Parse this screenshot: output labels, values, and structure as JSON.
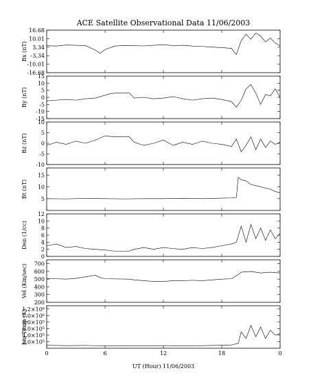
{
  "chart_data": {
    "type": "line",
    "title": "ACE Satellite Observational Data   11/06/2003",
    "xlabel": "UT (Hour)   11/06/2003",
    "x_ticks": [
      "0",
      "6",
      "12",
      "18",
      "0"
    ],
    "x_range_hours": [
      0,
      24
    ],
    "panels": [
      {
        "id": "bx",
        "ylabel": "Bx (nT)",
        "ylim": [
          -16.68,
          16.68
        ],
        "yticks": [
          -16.68,
          -10.01,
          -3.34,
          3.34,
          10.01,
          16.68
        ],
        "ytick_labels": [
          "-16.68",
          "-10.01",
          "-3.34",
          "3.34",
          "10.01",
          "16.68"
        ],
        "points": [
          [
            0,
            4.5
          ],
          [
            1,
            4.2
          ],
          [
            2,
            5.0
          ],
          [
            3,
            4.8
          ],
          [
            4,
            4.6
          ],
          [
            5,
            1.0
          ],
          [
            5.5,
            -1.5
          ],
          [
            6,
            1.5
          ],
          [
            7,
            4.2
          ],
          [
            8,
            4.6
          ],
          [
            9,
            4.5
          ],
          [
            10,
            4.3
          ],
          [
            11,
            4.8
          ],
          [
            12,
            5.2
          ],
          [
            13,
            4.6
          ],
          [
            14,
            4.8
          ],
          [
            15,
            4.2
          ],
          [
            16,
            3.9
          ],
          [
            17,
            3.4
          ],
          [
            18,
            3.0
          ],
          [
            19,
            2.4
          ],
          [
            19.5,
            -2.5
          ],
          [
            20,
            8.5
          ],
          [
            20.5,
            13.5
          ],
          [
            21,
            9.5
          ],
          [
            21.5,
            14.5
          ],
          [
            22,
            12.0
          ],
          [
            22.5,
            7.5
          ],
          [
            23,
            10.5
          ],
          [
            23.5,
            6.5
          ],
          [
            24,
            4.5
          ]
        ]
      },
      {
        "id": "by",
        "ylabel": "By (nT)",
        "ylim": [
          -15,
          15
        ],
        "yticks": [
          -15,
          -10,
          -5,
          0,
          5,
          10,
          15
        ],
        "ytick_labels": [
          "-15",
          "-10",
          "-5",
          "0",
          "5",
          "10",
          "15"
        ],
        "points": [
          [
            0,
            -2.5
          ],
          [
            1,
            -2.0
          ],
          [
            2,
            -1.5
          ],
          [
            3,
            -2.0
          ],
          [
            4,
            -1.0
          ],
          [
            5,
            -0.5
          ],
          [
            6,
            1.5
          ],
          [
            6.5,
            2.5
          ],
          [
            7,
            3.0
          ],
          [
            8.5,
            3.0
          ],
          [
            9,
            -0.5
          ],
          [
            10,
            0.0
          ],
          [
            11,
            -1.0
          ],
          [
            12,
            -0.5
          ],
          [
            13,
            0.5
          ],
          [
            14,
            -1.0
          ],
          [
            15,
            -2.0
          ],
          [
            16,
            -1.0
          ],
          [
            17,
            -0.5
          ],
          [
            18,
            -1.5
          ],
          [
            19,
            -3.0
          ],
          [
            19.5,
            -7.0
          ],
          [
            20,
            -2.0
          ],
          [
            20.5,
            6.0
          ],
          [
            21,
            9.0
          ],
          [
            21.5,
            3.0
          ],
          [
            22,
            -5.0
          ],
          [
            22.5,
            2.0
          ],
          [
            23,
            1.0
          ],
          [
            23.5,
            6.0
          ],
          [
            24,
            0.0
          ]
        ]
      },
      {
        "id": "bz",
        "ylabel": "Bz (nT)",
        "ylim": [
          -10,
          10
        ],
        "yticks": [
          -10,
          -5,
          0,
          5,
          10
        ],
        "ytick_labels": [
          "-10",
          "-5",
          "0",
          "5",
          "10"
        ],
        "points": [
          [
            0,
            -1.0
          ],
          [
            1,
            0.5
          ],
          [
            2,
            -0.5
          ],
          [
            3,
            1.0
          ],
          [
            4,
            0.0
          ],
          [
            5,
            1.5
          ],
          [
            6,
            3.5
          ],
          [
            7,
            3.0
          ],
          [
            8.5,
            3.0
          ],
          [
            9,
            0.5
          ],
          [
            10,
            -1.0
          ],
          [
            11,
            0.0
          ],
          [
            12,
            1.5
          ],
          [
            13,
            -1.0
          ],
          [
            14,
            0.5
          ],
          [
            15,
            -0.5
          ],
          [
            16,
            1.0
          ],
          [
            17,
            0.0
          ],
          [
            18,
            -0.5
          ],
          [
            19,
            -1.5
          ],
          [
            19.5,
            2.0
          ],
          [
            20,
            -4.0
          ],
          [
            20.5,
            -1.0
          ],
          [
            21,
            3.0
          ],
          [
            21.5,
            -3.0
          ],
          [
            22,
            2.0
          ],
          [
            22.5,
            -2.0
          ],
          [
            23,
            1.0
          ],
          [
            23.5,
            -0.5
          ],
          [
            24,
            0.5
          ]
        ]
      },
      {
        "id": "bt",
        "ylabel": "Bt (nT)",
        "ylim": [
          0,
          18
        ],
        "yticks": [
          5,
          10,
          15
        ],
        "ytick_labels": [
          "5",
          "10",
          "15"
        ],
        "points": [
          [
            0,
            5.0
          ],
          [
            2,
            4.9
          ],
          [
            4,
            5.1
          ],
          [
            6,
            5.0
          ],
          [
            8,
            4.9
          ],
          [
            10,
            5.0
          ],
          [
            12,
            5.0
          ],
          [
            14,
            5.1
          ],
          [
            16,
            5.0
          ],
          [
            18,
            5.2
          ],
          [
            19,
            5.3
          ],
          [
            19.5,
            5.5
          ],
          [
            19.7,
            14.0
          ],
          [
            20,
            13.0
          ],
          [
            20.5,
            12.5
          ],
          [
            21,
            11.0
          ],
          [
            21.5,
            10.5
          ],
          [
            22,
            10.0
          ],
          [
            22.5,
            9.5
          ],
          [
            23,
            9.0
          ],
          [
            23.5,
            8.0
          ],
          [
            24,
            7.5
          ]
        ]
      },
      {
        "id": "den",
        "ylabel": "Den (1/cc)",
        "ylim": [
          0,
          12
        ],
        "yticks": [
          0,
          2,
          4,
          6,
          8,
          10,
          12
        ],
        "ytick_labels": [
          "0",
          "2",
          "4",
          "6",
          "8",
          "10",
          "12"
        ],
        "points": [
          [
            0,
            3.0
          ],
          [
            1,
            3.5
          ],
          [
            2,
            2.5
          ],
          [
            3,
            2.8
          ],
          [
            4,
            2.2
          ],
          [
            5,
            2.0
          ],
          [
            6,
            1.8
          ],
          [
            7,
            1.5
          ],
          [
            8.5,
            1.5
          ],
          [
            9,
            2.0
          ],
          [
            10,
            2.5
          ],
          [
            11,
            2.0
          ],
          [
            12,
            2.5
          ],
          [
            13,
            2.2
          ],
          [
            14,
            2.0
          ],
          [
            15,
            2.5
          ],
          [
            16,
            2.2
          ],
          [
            17,
            2.5
          ],
          [
            18,
            3.0
          ],
          [
            19,
            3.5
          ],
          [
            19.5,
            4.0
          ],
          [
            20,
            8.5
          ],
          [
            20.5,
            4.0
          ],
          [
            21,
            9.0
          ],
          [
            21.5,
            5.0
          ],
          [
            22,
            8.0
          ],
          [
            22.5,
            4.5
          ],
          [
            23,
            7.5
          ],
          [
            23.5,
            5.0
          ],
          [
            24,
            6.5
          ]
        ]
      },
      {
        "id": "vel",
        "ylabel": "Vel (Km/sec)",
        "ylim": [
          200,
          750
        ],
        "yticks": [
          200,
          300,
          400,
          500,
          600,
          700
        ],
        "ytick_labels": [
          "200",
          "300",
          "400",
          "500",
          "600",
          "700"
        ],
        "points": [
          [
            0,
            510
          ],
          [
            1,
            505
          ],
          [
            2,
            500
          ],
          [
            3,
            510
          ],
          [
            4,
            530
          ],
          [
            5,
            550
          ],
          [
            5.5,
            520
          ],
          [
            6,
            505
          ],
          [
            8.5,
            500
          ],
          [
            9,
            490
          ],
          [
            10,
            480
          ],
          [
            11,
            470
          ],
          [
            12,
            470
          ],
          [
            13,
            480
          ],
          [
            14,
            480
          ],
          [
            15,
            485
          ],
          [
            16,
            480
          ],
          [
            17,
            490
          ],
          [
            18,
            500
          ],
          [
            19,
            505
          ],
          [
            19.7,
            560
          ],
          [
            20,
            590
          ],
          [
            21,
            600
          ],
          [
            22,
            580
          ],
          [
            23,
            590
          ],
          [
            24,
            580
          ]
        ]
      },
      {
        "id": "temp",
        "ylabel": "Ion Temp (K)",
        "ylim": [
          0,
          1300000
        ],
        "yticks": [
          200000,
          400000,
          600000,
          800000,
          1000000,
          1200000
        ],
        "ytick_labels": [
          "2.0×10⁵",
          "4.0×10⁵",
          "6.0×10⁵",
          "8.0×10⁵",
          "1.0×10⁶",
          "1.2×10⁶"
        ],
        "points": [
          [
            0,
            90000
          ],
          [
            2,
            80000
          ],
          [
            4,
            85000
          ],
          [
            6,
            75000
          ],
          [
            8,
            70000
          ],
          [
            10,
            75000
          ],
          [
            12,
            80000
          ],
          [
            14,
            75000
          ],
          [
            16,
            80000
          ],
          [
            18,
            90000
          ],
          [
            19,
            100000
          ],
          [
            19.7,
            150000
          ],
          [
            20,
            500000
          ],
          [
            20.5,
            300000
          ],
          [
            21,
            700000
          ],
          [
            21.5,
            350000
          ],
          [
            22,
            650000
          ],
          [
            22.5,
            300000
          ],
          [
            23,
            550000
          ],
          [
            23.5,
            400000
          ],
          [
            24,
            450000
          ]
        ]
      }
    ]
  }
}
